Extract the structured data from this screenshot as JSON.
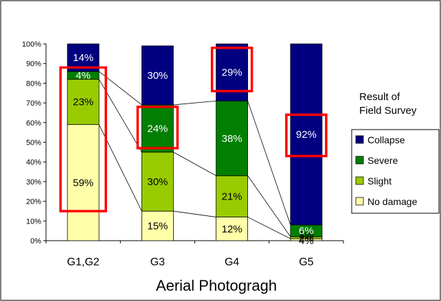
{
  "chart_data": {
    "type": "bar",
    "stacked": true,
    "percent": true,
    "categories": [
      "G1,G2",
      "G3",
      "G4",
      "G5"
    ],
    "series": [
      {
        "name": "No damage",
        "values": [
          59,
          15,
          12,
          1
        ],
        "color": "#FFFFAA",
        "label_color": "#000000",
        "labels": [
          "59%",
          "15%",
          "12%",
          ""
        ]
      },
      {
        "name": "Slight",
        "values": [
          23,
          30,
          21,
          1
        ],
        "color": "#99CC00",
        "label_color": "#000000",
        "labels": [
          "23%",
          "30%",
          "21%",
          "1%"
        ]
      },
      {
        "name": "Severe",
        "values": [
          4,
          24,
          38,
          6
        ],
        "color": "#007F00",
        "label_color": "#FFFFFF",
        "labels": [
          "4%",
          "24%",
          "38%",
          "6%"
        ]
      },
      {
        "name": "Collapse",
        "values": [
          14,
          30,
          29,
          92
        ],
        "color": "#000080",
        "label_color": "#FFFFFF",
        "labels": [
          "14%",
          "30%",
          "29%",
          "92%"
        ]
      }
    ],
    "g5_extra_labels": [
      "2%",
      "4%"
    ],
    "xlabel": "Aerial Photogragh",
    "ylabel": "",
    "ylim": [
      0,
      100
    ],
    "yticks": [
      "0%",
      "10%",
      "20%",
      "30%",
      "40%",
      "50%",
      "60%",
      "70%",
      "80%",
      "90%",
      "100%"
    ],
    "grid": false,
    "legend_title": [
      "Result of",
      "Field Survey"
    ],
    "legend_order": [
      "Collapse",
      "Severe",
      "Slight",
      "No damage"
    ],
    "legend_position": "right",
    "highlights": [
      {
        "category": "G1,G2",
        "segment_range": [
          15,
          88
        ],
        "color": "#FF0000"
      },
      {
        "category": "G3",
        "segment_range": [
          47,
          68
        ],
        "color": "#FF0000"
      },
      {
        "category": "G4",
        "segment_range": [
          76,
          98
        ],
        "color": "#FF0000"
      },
      {
        "category": "G5",
        "segment_range": [
          43,
          64
        ],
        "color": "#FF0000"
      }
    ]
  }
}
